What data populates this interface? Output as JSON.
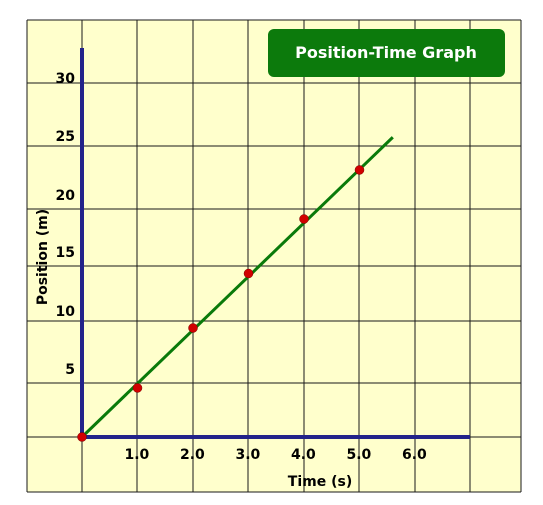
{
  "chart_data": {
    "type": "scatter",
    "title": "Position-Time Graph",
    "xlabel": "Time (s)",
    "ylabel": "Position (m)",
    "x_tick_labels": [
      "1.0",
      "2.0",
      "3.0",
      "4.0",
      "5.0",
      "6.0"
    ],
    "y_tick_labels": [
      "5",
      "10",
      "15",
      "20",
      "25",
      "30"
    ],
    "xlim": [
      0,
      7
    ],
    "ylim": [
      0,
      35
    ],
    "grid": true,
    "series": [
      {
        "points": [
          {
            "x": 0.0,
            "y": 0.0
          },
          {
            "x": 1.0,
            "y": 4.5
          },
          {
            "x": 2.0,
            "y": 10.0
          },
          {
            "x": 3.0,
            "y": 15.0
          },
          {
            "x": 4.0,
            "y": 20.0
          },
          {
            "x": 5.0,
            "y": 24.5
          }
        ],
        "color": "#d10000"
      }
    ],
    "fit_line": {
      "from": {
        "x": 0.0,
        "y": 0.0
      },
      "to": {
        "x": 5.6,
        "y": 27.5
      },
      "color": "#0a7a0a"
    },
    "colors": {
      "background": "#ffffcc",
      "grid": "#1a1a1a",
      "axis": "#23238a",
      "title_box": "#0c7a0c",
      "title_text": "#ffffff"
    }
  }
}
